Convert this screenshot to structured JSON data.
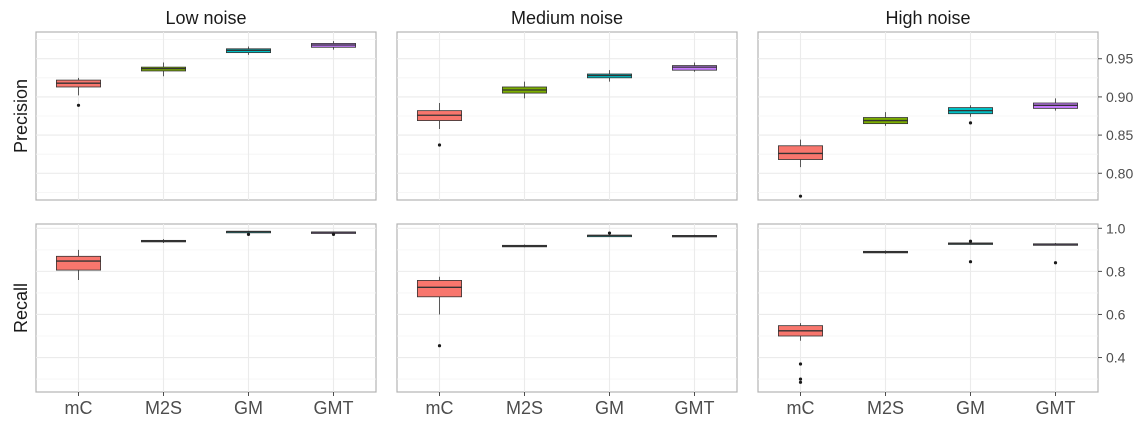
{
  "chart_data": {
    "type": "boxplot",
    "categories": [
      "mC",
      "M2S",
      "GM",
      "GMT"
    ],
    "category_colors": [
      "#f8766d",
      "#7cae00",
      "#00bfc4",
      "#c77cff"
    ],
    "columns": [
      "Low noise",
      "Medium noise",
      "High noise"
    ],
    "rows": [
      "Precision",
      "Recall"
    ],
    "y_axes": {
      "Precision": {
        "ylim": [
          0.765,
          0.985
        ],
        "ticks": [
          0.8,
          0.85,
          0.9,
          0.95
        ],
        "tick_labels": [
          "0.80",
          "0.85",
          "0.90",
          "0.95"
        ]
      },
      "Recall": {
        "ylim": [
          0.24,
          1.02
        ],
        "ticks": [
          0.4,
          0.6,
          0.8,
          1.0
        ],
        "tick_labels": [
          "0.4",
          "0.6",
          "0.8",
          "1.0"
        ]
      }
    },
    "grid": true,
    "panels": [
      {
        "row": "Precision",
        "column": "Low noise",
        "boxes": [
          {
            "category": "mC",
            "whisker_low": 0.902,
            "q1": 0.913,
            "median": 0.918,
            "q3": 0.922,
            "whisker_high": 0.925,
            "outliers": [
              0.889
            ]
          },
          {
            "category": "M2S",
            "whisker_low": 0.927,
            "q1": 0.934,
            "median": 0.937,
            "q3": 0.939,
            "whisker_high": 0.945,
            "outliers": []
          },
          {
            "category": "GM",
            "whisker_low": 0.955,
            "q1": 0.958,
            "median": 0.961,
            "q3": 0.963,
            "whisker_high": 0.966,
            "outliers": []
          },
          {
            "category": "GMT",
            "whisker_low": 0.962,
            "q1": 0.965,
            "median": 0.968,
            "q3": 0.97,
            "whisker_high": 0.973,
            "outliers": []
          }
        ]
      },
      {
        "row": "Precision",
        "column": "Medium noise",
        "boxes": [
          {
            "category": "mC",
            "whisker_low": 0.858,
            "q1": 0.869,
            "median": 0.876,
            "q3": 0.882,
            "whisker_high": 0.892,
            "outliers": [
              0.837
            ]
          },
          {
            "category": "M2S",
            "whisker_low": 0.898,
            "q1": 0.905,
            "median": 0.909,
            "q3": 0.913,
            "whisker_high": 0.92,
            "outliers": []
          },
          {
            "category": "GM",
            "whisker_low": 0.92,
            "q1": 0.925,
            "median": 0.928,
            "q3": 0.93,
            "whisker_high": 0.935,
            "outliers": []
          },
          {
            "category": "GMT",
            "whisker_low": 0.933,
            "q1": 0.935,
            "median": 0.939,
            "q3": 0.941,
            "whisker_high": 0.945,
            "outliers": []
          }
        ]
      },
      {
        "row": "Precision",
        "column": "High noise",
        "boxes": [
          {
            "category": "mC",
            "whisker_low": 0.808,
            "q1": 0.818,
            "median": 0.826,
            "q3": 0.836,
            "whisker_high": 0.844,
            "outliers": [
              0.77
            ]
          },
          {
            "category": "M2S",
            "whisker_low": 0.862,
            "q1": 0.865,
            "median": 0.869,
            "q3": 0.873,
            "whisker_high": 0.88,
            "outliers": []
          },
          {
            "category": "GM",
            "whisker_low": 0.874,
            "q1": 0.878,
            "median": 0.882,
            "q3": 0.886,
            "whisker_high": 0.889,
            "outliers": [
              0.866
            ]
          },
          {
            "category": "GMT",
            "whisker_low": 0.882,
            "q1": 0.885,
            "median": 0.889,
            "q3": 0.892,
            "whisker_high": 0.898,
            "outliers": []
          }
        ]
      },
      {
        "row": "Recall",
        "column": "Low noise",
        "boxes": [
          {
            "category": "mC",
            "whisker_low": 0.76,
            "q1": 0.806,
            "median": 0.848,
            "q3": 0.87,
            "whisker_high": 0.9,
            "outliers": []
          },
          {
            "category": "M2S",
            "whisker_low": 0.932,
            "q1": 0.937,
            "median": 0.941,
            "q3": 0.944,
            "whisker_high": 0.95,
            "outliers": []
          },
          {
            "category": "GM",
            "whisker_low": 0.982,
            "q1": 0.983,
            "median": 0.985,
            "q3": 0.986,
            "whisker_high": 0.988,
            "outliers": [
              0.972
            ]
          },
          {
            "category": "GMT",
            "whisker_low": 0.979,
            "q1": 0.98,
            "median": 0.982,
            "q3": 0.983,
            "whisker_high": 0.985,
            "outliers": [
              0.972
            ]
          }
        ]
      },
      {
        "row": "Recall",
        "column": "Medium noise",
        "boxes": [
          {
            "category": "mC",
            "whisker_low": 0.6,
            "q1": 0.682,
            "median": 0.726,
            "q3": 0.758,
            "whisker_high": 0.775,
            "outliers": [
              0.455
            ]
          },
          {
            "category": "M2S",
            "whisker_low": 0.912,
            "q1": 0.915,
            "median": 0.918,
            "q3": 0.921,
            "whisker_high": 0.925,
            "outliers": []
          },
          {
            "category": "GM",
            "whisker_low": 0.962,
            "q1": 0.965,
            "median": 0.967,
            "q3": 0.968,
            "whisker_high": 0.972,
            "outliers": [
              0.978
            ]
          },
          {
            "category": "GMT",
            "whisker_low": 0.96,
            "q1": 0.963,
            "median": 0.965,
            "q3": 0.967,
            "whisker_high": 0.97,
            "outliers": []
          }
        ]
      },
      {
        "row": "Recall",
        "column": "High noise",
        "boxes": [
          {
            "category": "mC",
            "whisker_low": 0.478,
            "q1": 0.5,
            "median": 0.524,
            "q3": 0.548,
            "whisker_high": 0.56,
            "outliers": [
              0.37,
              0.3,
              0.285
            ]
          },
          {
            "category": "M2S",
            "whisker_low": 0.882,
            "q1": 0.886,
            "median": 0.89,
            "q3": 0.893,
            "whisker_high": 0.897,
            "outliers": []
          },
          {
            "category": "GM",
            "whisker_low": 0.925,
            "q1": 0.927,
            "median": 0.93,
            "q3": 0.932,
            "whisker_high": 0.935,
            "outliers": [
              0.845,
              0.94
            ]
          },
          {
            "category": "GMT",
            "whisker_low": 0.921,
            "q1": 0.923,
            "median": 0.926,
            "q3": 0.928,
            "whisker_high": 0.932,
            "outliers": [
              0.84
            ]
          }
        ]
      }
    ]
  }
}
